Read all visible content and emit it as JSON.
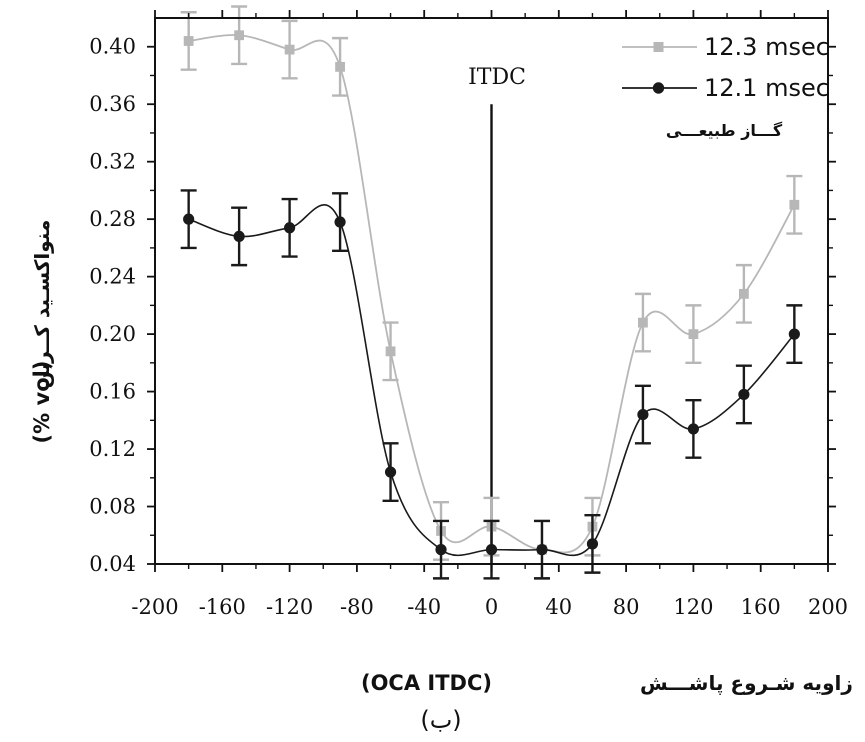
{
  "chart_data": {
    "type": "scatter",
    "subtitle_label": "(ب)",
    "xlabel_fa": "زاویه شـروع پاشـــش",
    "xlabel_unit": "(OCA ITDC)",
    "ylabel_fa": "منواکسـید کــربن",
    "ylabel_unit": "(% vol)",
    "xlim": [
      -200,
      200
    ],
    "ylim": [
      0.04,
      0.42
    ],
    "x_ticks": [
      -200,
      -160,
      -120,
      -80,
      -40,
      0,
      40,
      80,
      120,
      160,
      200
    ],
    "y_ticks": [
      0.04,
      0.08,
      0.12,
      0.16,
      0.2,
      0.24,
      0.28,
      0.32,
      0.36,
      0.4
    ],
    "x_tick_labels": [
      "-200",
      "-160",
      "-120",
      "-80",
      "-40",
      "0",
      "40",
      "80",
      "120",
      "160",
      "200"
    ],
    "y_tick_labels": [
      "0.04",
      "0.08",
      "0.12",
      "0.16",
      "0.20",
      "0.24",
      "0.28",
      "0.32",
      "0.36",
      "0.40"
    ],
    "grid": false,
    "legend_position": "top-right",
    "reference_line": {
      "x": 0,
      "label": "ITDC",
      "y_top": 0.36
    },
    "annotation": "گـــاز طبیعـــی",
    "series": [
      {
        "name": "12.3 msec",
        "marker": "square",
        "color": "#b7b7b7",
        "x": [
          -180,
          -150,
          -120,
          -90,
          -60,
          -30,
          0,
          30,
          60,
          90,
          120,
          150,
          180
        ],
        "y": [
          0.404,
          0.408,
          0.398,
          0.386,
          0.188,
          0.063,
          0.066,
          0.05,
          0.066,
          0.208,
          0.2,
          0.228,
          0.29
        ],
        "error": [
          0.02,
          0.02,
          0.02,
          0.02,
          0.02,
          0.02,
          0.02,
          0.02,
          0.02,
          0.02,
          0.02,
          0.02,
          0.02
        ]
      },
      {
        "name": "12.1 msec",
        "marker": "circle",
        "color": "#1a1a1a",
        "x": [
          -180,
          -150,
          -120,
          -90,
          -60,
          -30,
          0,
          30,
          60,
          90,
          120,
          150,
          180
        ],
        "y": [
          0.28,
          0.268,
          0.274,
          0.278,
          0.104,
          0.05,
          0.05,
          0.05,
          0.054,
          0.144,
          0.134,
          0.158,
          0.2
        ],
        "error": [
          0.02,
          0.02,
          0.02,
          0.02,
          0.02,
          0.02,
          0.02,
          0.02,
          0.02,
          0.02,
          0.02,
          0.02,
          0.02
        ]
      }
    ]
  }
}
